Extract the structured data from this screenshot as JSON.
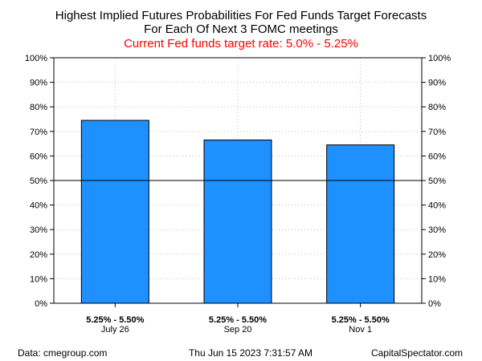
{
  "chart_data": {
    "type": "bar",
    "title": "Highest Implied Futures Probabilities For Fed Funds Target Forecasts",
    "title_line2": "For Each Of Next 3 FOMC meetings",
    "subtitle": "Current Fed funds target rate: 5.0% - 5.25%",
    "categories": [
      {
        "range": "5.25% - 5.50%",
        "meeting": "July 26"
      },
      {
        "range": "5.25% - 5.50%",
        "meeting": "Sep 20"
      },
      {
        "range": "5.25% - 5.50%",
        "meeting": "Nov 1"
      }
    ],
    "values": [
      74.5,
      66.5,
      64.5
    ],
    "ylim": [
      0,
      100
    ],
    "yticks": [
      0,
      10,
      20,
      30,
      40,
      50,
      60,
      70,
      80,
      90,
      100
    ],
    "ytick_labels": [
      "0%",
      "10%",
      "20%",
      "30%",
      "40%",
      "50%",
      "60%",
      "70%",
      "80%",
      "90%",
      "100%"
    ],
    "reference_line": 50,
    "grid": true,
    "legend": "none",
    "bar_color": "#1E90FF",
    "subtitle_color": "#FF0000"
  },
  "footer": {
    "source": "Data: cmegroup.com",
    "timestamp": "Thu Jun 15 2023 7:31:57 AM",
    "credit": "CapitalSpectator.com"
  }
}
